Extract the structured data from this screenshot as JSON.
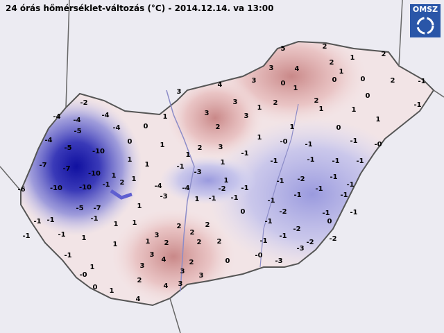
{
  "header": {
    "title": "24 órás hőmérséklet-változás (°C) - 2014.12.14. va 13:00",
    "logo": "OMSZ"
  },
  "stations": [
    5,
    2,
    2,
    1,
    3,
    4,
    2,
    1,
    -1,
    2,
    0,
    0,
    0,
    3,
    1,
    4,
    3,
    0,
    2,
    1,
    2,
    3,
    1,
    3,
    1,
    1,
    -1,
    3,
    1,
    -2,
    -4,
    -4,
    -4,
    -5,
    -4,
    0,
    2,
    0,
    1,
    1,
    "-0",
    -1,
    -1,
    "-0",
    -4,
    -5,
    -10,
    0,
    1,
    2,
    3,
    -1,
    1,
    1,
    1,
    1,
    -1,
    -1,
    -1,
    -1,
    -7,
    -7,
    -10,
    1,
    1,
    -1,
    -3,
    1,
    -2,
    -1,
    -1,
    -1,
    -6,
    -10,
    -10,
    -1,
    2,
    -4,
    -4,
    -2,
    -1,
    -1,
    -1,
    -3,
    1,
    -1,
    -1,
    -1,
    -1,
    -1,
    -5,
    -7,
    1,
    0,
    -2,
    -1,
    -1,
    -1,
    -1,
    1,
    1,
    2,
    2,
    -1,
    -2,
    0,
    -1,
    -1,
    1,
    3,
    2,
    2,
    -1,
    -1,
    -2,
    -2,
    1,
    1,
    2,
    2,
    -3,
    -1,
    3,
    2,
    0,
    "-0",
    -3,
    3,
    4,
    1,
    "-0",
    0,
    2,
    3,
    3,
    1,
    4,
    3,
    4
  ]
}
